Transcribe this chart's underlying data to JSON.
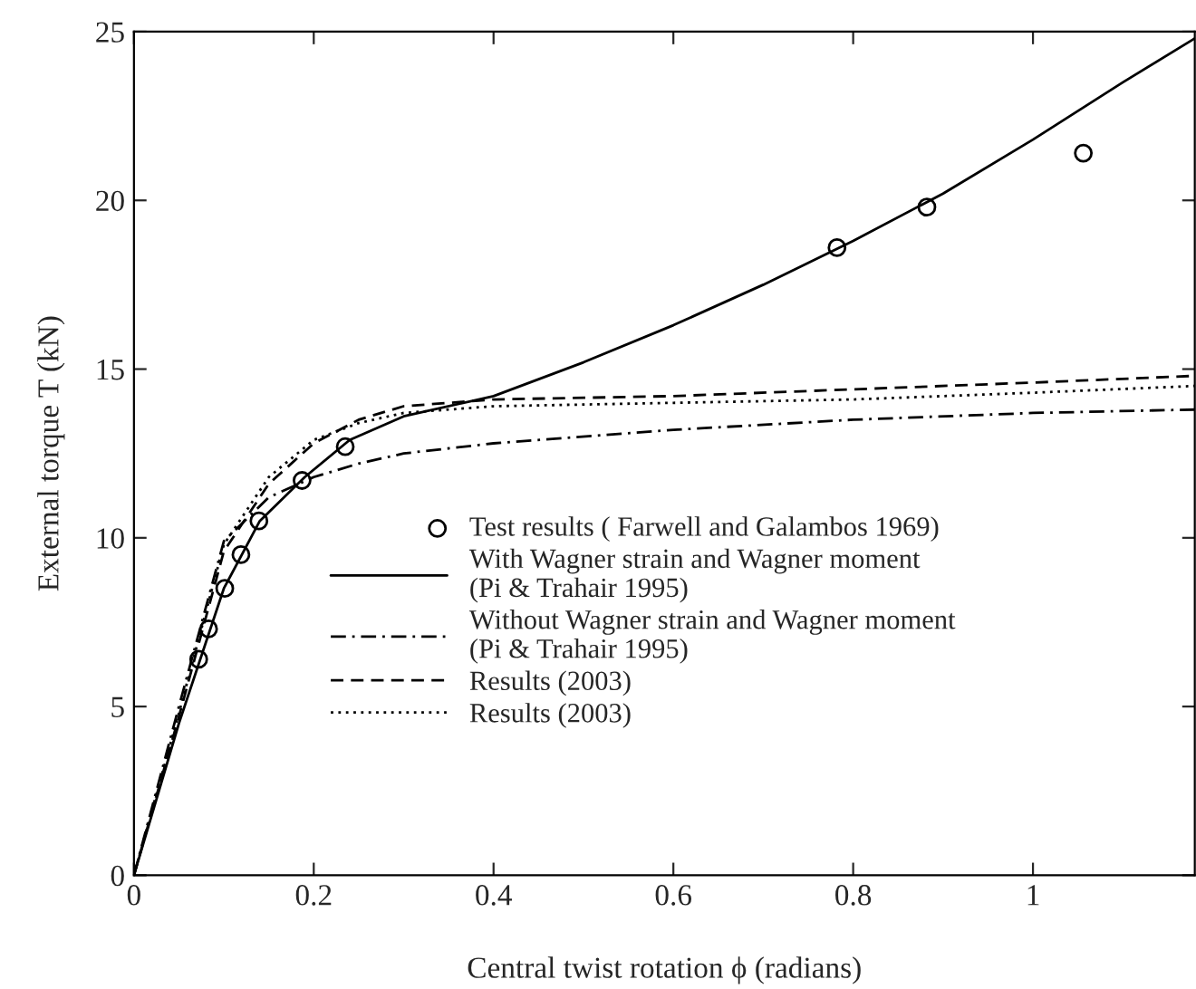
{
  "chart_data": {
    "type": "line",
    "xlabel": "Central twist rotation ϕ (radians)",
    "ylabel": "External torque T (kN)",
    "xlim": [
      0,
      1.18
    ],
    "xticks": [
      0,
      0.2,
      0.4,
      0.6,
      0.8,
      1
    ],
    "ylim": [
      0,
      25
    ],
    "yticks": [
      0,
      5,
      10,
      15,
      20,
      25
    ],
    "grid": false,
    "legend": "center",
    "series": [
      {
        "name": "Test results ( Farwell and Galambos 1969)",
        "type": "scatter",
        "marker": "circle",
        "color": "#000000",
        "x": [
          0.072,
          0.083,
          0.101,
          0.119,
          0.139,
          0.187,
          0.235,
          0.782,
          0.882,
          1.056
        ],
        "values": [
          6.4,
          7.3,
          8.5,
          9.5,
          10.5,
          11.7,
          12.7,
          18.6,
          19.8,
          21.4
        ]
      },
      {
        "name": "With Wagner strain and Wagner moment\n(Pi & Trahair 1995)",
        "type": "line",
        "line_style": "solid",
        "marker": "none",
        "color": "#000000",
        "x": [
          0,
          0.02,
          0.05,
          0.075,
          0.1,
          0.14,
          0.19,
          0.24,
          0.3,
          0.4,
          0.5,
          0.6,
          0.7,
          0.8,
          0.9,
          1.0,
          1.1,
          1.18
        ],
        "values": [
          0,
          1.8,
          4.5,
          6.5,
          8.5,
          10.5,
          11.8,
          12.9,
          13.6,
          14.2,
          15.2,
          16.3,
          17.5,
          18.8,
          20.2,
          21.8,
          23.5,
          24.8
        ]
      },
      {
        "name": "Without Wagner strain and Wagner moment\n(Pi & Trahair 1995)",
        "type": "line",
        "line_style": "dashdot",
        "marker": "none",
        "color": "#000000",
        "x": [
          0,
          0.05,
          0.1,
          0.15,
          0.2,
          0.25,
          0.3,
          0.4,
          0.6,
          0.8,
          1.0,
          1.18
        ],
        "values": [
          0,
          5.0,
          9.9,
          11.2,
          11.8,
          12.2,
          12.5,
          12.8,
          13.2,
          13.5,
          13.7,
          13.8
        ]
      },
      {
        "name": "Results (2003)",
        "type": "line",
        "line_style": "dashed",
        "marker": "none",
        "color": "#000000",
        "x": [
          0,
          0.05,
          0.1,
          0.15,
          0.2,
          0.25,
          0.3,
          0.4,
          0.6,
          0.8,
          1.0,
          1.18
        ],
        "values": [
          0,
          4.7,
          9.6,
          11.6,
          12.8,
          13.5,
          13.9,
          14.1,
          14.2,
          14.4,
          14.6,
          14.8
        ]
      },
      {
        "name": "Results (2003)",
        "type": "line",
        "line_style": "dotted",
        "marker": "none",
        "color": "#000000",
        "x": [
          0,
          0.05,
          0.1,
          0.15,
          0.2,
          0.25,
          0.3,
          0.4,
          0.6,
          0.8,
          1.0,
          1.18
        ],
        "values": [
          0,
          4.8,
          9.8,
          11.8,
          12.9,
          13.4,
          13.7,
          13.9,
          14.0,
          14.1,
          14.3,
          14.5
        ]
      }
    ]
  }
}
